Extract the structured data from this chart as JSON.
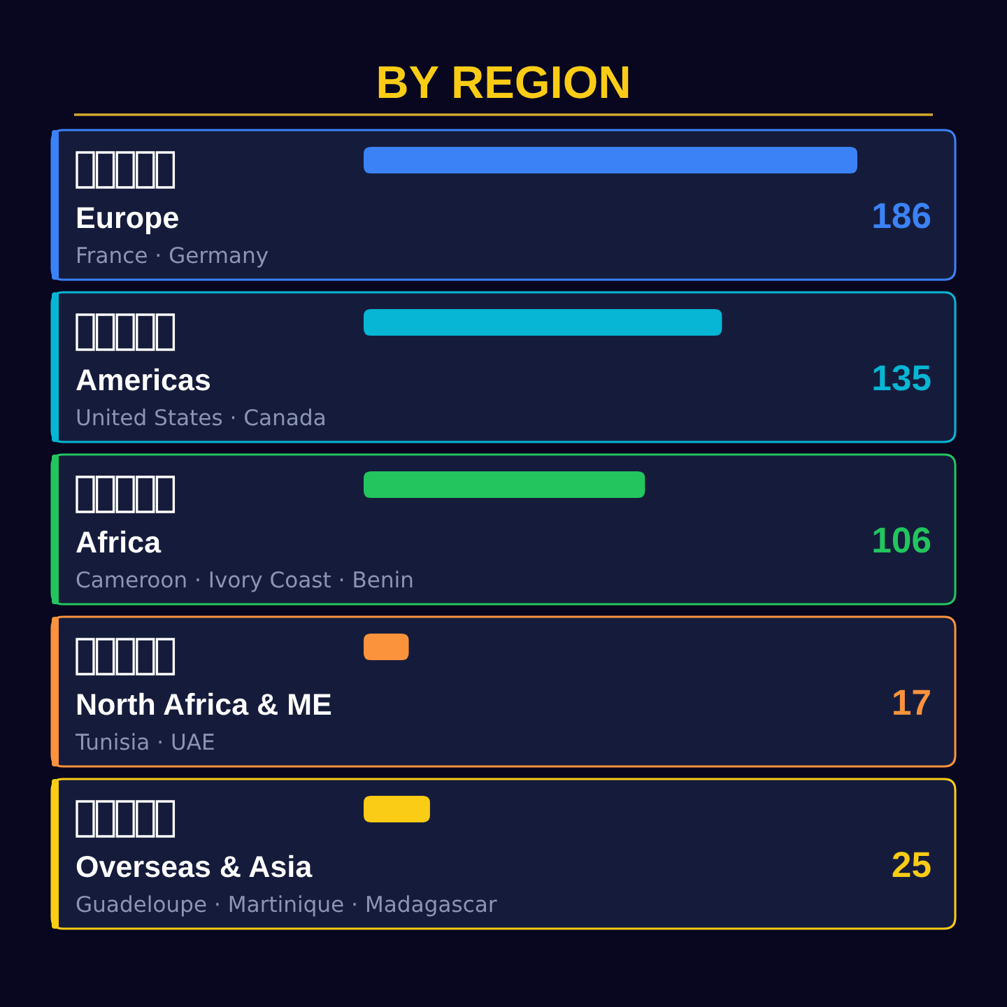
{
  "chart_data": {
    "type": "bar",
    "orientation": "horizontal",
    "title": "BY REGION",
    "categories": [
      "Europe",
      "Americas",
      "Africa",
      "North Africa & ME",
      "Overseas & Asia"
    ],
    "values": [
      186,
      135,
      106,
      17,
      25
    ],
    "colors": [
      "#3b82f6",
      "#06b6d4",
      "#22c55e",
      "#fb923c",
      "#facc15"
    ],
    "data_labels": true,
    "annotations": [
      "France · Germany",
      "United States · Canada",
      "Cameroon · Ivory Coast · Benin",
      "Tunisia · UAE",
      "Guadeloupe · Martinique · Madagascar"
    ]
  }
}
